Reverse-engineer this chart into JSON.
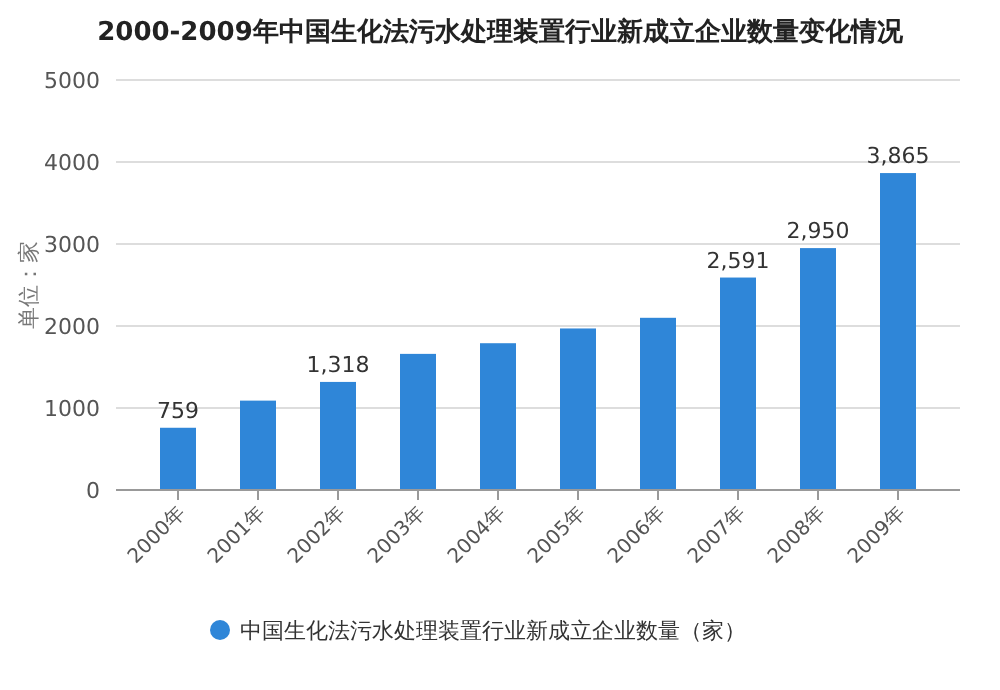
{
  "chart_data": {
    "type": "bar",
    "title": "2000-2009年中国生化法污水处理装置行业新成立企业数量变化情况",
    "ylabel": "单位：家",
    "categories": [
      "2000年",
      "2001年",
      "2002年",
      "2003年",
      "2004年",
      "2005年",
      "2006年",
      "2007年",
      "2008年",
      "2009年"
    ],
    "series": [
      {
        "name": "中国生化法污水处理装置行业新成立企业数量（家）",
        "color": "#2f86d8",
        "values": [
          759,
          1090,
          1318,
          1660,
          1790,
          1970,
          2100,
          2591,
          2950,
          3865
        ],
        "value_labels": [
          "759",
          null,
          "1,318",
          null,
          null,
          null,
          null,
          "2,591",
          "2,950",
          "3,865"
        ]
      }
    ],
    "ylim": [
      0,
      5000
    ],
    "yticks": [
      0,
      1000,
      2000,
      3000,
      4000,
      5000
    ],
    "grid": "y",
    "legend": "bottom",
    "marker": "circle"
  }
}
